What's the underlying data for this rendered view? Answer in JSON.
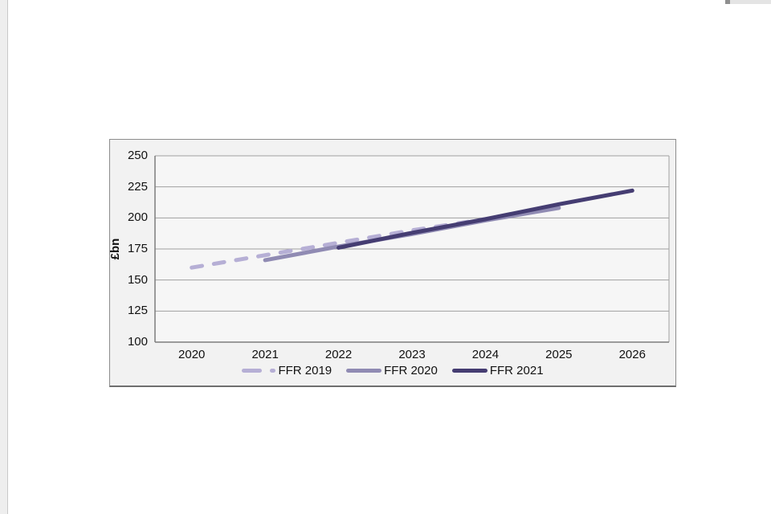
{
  "chart_data": {
    "type": "line",
    "title": "",
    "xlabel": "",
    "ylabel": "£bn",
    "x_tick_labels": [
      "2020",
      "2021",
      "2022",
      "2023",
      "2024",
      "2025",
      "2026"
    ],
    "y_ticks": [
      100,
      125,
      150,
      175,
      200,
      225,
      250
    ],
    "ylim": [
      100,
      250
    ],
    "xlim_categories": 7,
    "grid": "horizontal",
    "legend_position": "bottom",
    "colors": {
      "gridline": "#a0a0a0",
      "axis": "#7d7d7d",
      "plot_background": "#f6f6f6",
      "frame_background": "#f2f2f2"
    },
    "series": [
      {
        "name": "FFR 2019",
        "style": "dashed",
        "color": "#b6afd5",
        "x": [
          2020,
          2021,
          2022,
          2023,
          2024
        ],
        "values": [
          160,
          170,
          180,
          190,
          199
        ]
      },
      {
        "name": "FFR 2020",
        "style": "solid",
        "color": "#908bb3",
        "x": [
          2021,
          2022,
          2023,
          2024,
          2025
        ],
        "values": [
          166,
          177,
          187,
          198,
          208
        ]
      },
      {
        "name": "FFR 2021",
        "style": "solid",
        "color": "#453d72",
        "x": [
          2022,
          2023,
          2024,
          2025,
          2026
        ],
        "values": [
          176,
          188,
          199,
          211,
          222
        ]
      }
    ]
  }
}
